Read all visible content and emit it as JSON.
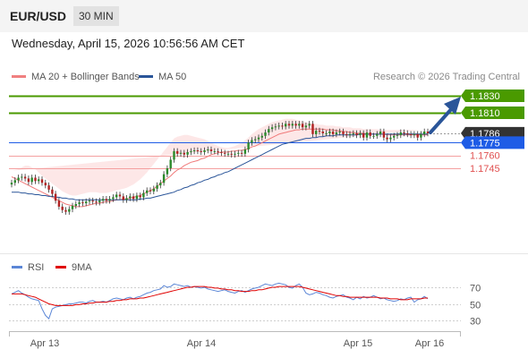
{
  "header": {
    "symbol": "EUR/USD",
    "interval": "30 MIN"
  },
  "datetime": "Wednesday, April 15, 2026 10:56:56 AM CET",
  "legend": {
    "ma20": {
      "label": "MA 20 + Bollinger Bands",
      "color": "#f08080"
    },
    "ma50": {
      "label": "MA 50",
      "color": "#2a5599"
    }
  },
  "credit": "Research © 2026 Trading Central",
  "rsi_legend": {
    "rsi": {
      "label": "RSI",
      "color": "#5b86d6"
    },
    "ma9": {
      "label": "9MA",
      "color": "#e00000"
    }
  },
  "chart_data": [
    {
      "type": "candlestick",
      "ylim": [
        1.7265,
        1.184
      ],
      "x_labels": [
        "Apr 13",
        "Apr 14",
        "Apr 15",
        "Apr 16"
      ],
      "price_levels": [
        {
          "value": 1.183,
          "label": "1.1830",
          "kind": "resistance",
          "color": "#4a9a00"
        },
        {
          "value": 1.181,
          "label": "1.1810",
          "kind": "resistance",
          "color": "#4a9a00"
        },
        {
          "value": 1.1786,
          "label": "1.1786",
          "kind": "last",
          "color": "#333333"
        },
        {
          "value": 1.1775,
          "label": "1.1775",
          "kind": "pivot",
          "color": "#1e5ce6"
        },
        {
          "value": 1.176,
          "label": "1.1760",
          "kind": "support",
          "color": "#e05050"
        },
        {
          "value": 1.1745,
          "label": "1.1745",
          "kind": "support",
          "color": "#e05050"
        }
      ],
      "close": [
        1.1728,
        1.1731,
        1.1734,
        1.1735,
        1.1733,
        1.1729,
        1.1734,
        1.173,
        1.1732,
        1.1728,
        1.1725,
        1.172,
        1.1715,
        1.1707,
        1.17,
        1.1696,
        1.1694,
        1.1697,
        1.1701,
        1.1703,
        1.1705,
        1.1704,
        1.1706,
        1.1707,
        1.1706,
        1.1705,
        1.1707,
        1.1709,
        1.1707,
        1.1709,
        1.1711,
        1.1714,
        1.1712,
        1.1708,
        1.171,
        1.1712,
        1.1709,
        1.1713,
        1.1711,
        1.1716,
        1.1719,
        1.1718,
        1.1721,
        1.1725,
        1.1728,
        1.1738,
        1.1745,
        1.1755,
        1.1765,
        1.1762,
        1.1763,
        1.1761,
        1.1764,
        1.1765,
        1.1766,
        1.1765,
        1.1764,
        1.1766,
        1.1767,
        1.1765,
        1.1765,
        1.1764,
        1.1763,
        1.1762,
        1.1762,
        1.1761,
        1.1762,
        1.1763,
        1.1762,
        1.1767,
        1.1775,
        1.1778,
        1.1779,
        1.1781,
        1.1783,
        1.1787,
        1.1791,
        1.1793,
        1.1794,
        1.1795,
        1.1794,
        1.1797,
        1.1795,
        1.1797,
        1.1795,
        1.1797,
        1.1793,
        1.1795,
        1.1797,
        1.1785,
        1.1789,
        1.1788,
        1.1786,
        1.1786,
        1.1788,
        1.1785,
        1.1787,
        1.1788,
        1.1785,
        1.1784,
        1.1785,
        1.1786,
        1.1784,
        1.1786,
        1.1781,
        1.1787,
        1.1783,
        1.1783,
        1.1785,
        1.1788,
        1.1781,
        1.1779,
        1.1781,
        1.1783,
        1.1784,
        1.1787,
        1.1786,
        1.1785,
        1.1784,
        1.1785,
        1.1781,
        1.1785,
        1.1788,
        1.1786
      ],
      "ma20": [
        1.1735,
        1.1733,
        1.1731,
        1.1729,
        1.1727,
        1.1725,
        1.1723,
        1.1721,
        1.1719,
        1.1717,
        1.1715,
        1.1713,
        1.1711,
        1.1709,
        1.1707,
        1.1705,
        1.1703,
        1.1702,
        1.1701,
        1.17,
        1.17,
        1.17,
        1.1701,
        1.1702,
        1.1703,
        1.1704,
        1.1704,
        1.1705,
        1.1706,
        1.1706,
        1.1707,
        1.1708,
        1.1708,
        1.1709,
        1.1709,
        1.171,
        1.1711,
        1.1712,
        1.1713,
        1.1715,
        1.1717,
        1.1719,
        1.1721,
        1.1724,
        1.1727,
        1.173,
        1.1733,
        1.1736,
        1.174,
        1.1743,
        1.1745,
        1.1748,
        1.175,
        1.1752,
        1.1753,
        1.1754,
        1.1756,
        1.1757,
        1.1759,
        1.1761,
        1.1762,
        1.1763,
        1.1764,
        1.1764,
        1.1764,
        1.1765,
        1.1765,
        1.1766,
        1.1766,
        1.1767,
        1.1768,
        1.177,
        1.1771,
        1.1773,
        1.1775,
        1.1777,
        1.1779,
        1.1781,
        1.1783,
        1.1785,
        1.1786,
        1.1787,
        1.1788,
        1.1789,
        1.179,
        1.179,
        1.1791,
        1.1791,
        1.1791,
        1.1791,
        1.1791,
        1.1791,
        1.1791,
        1.179,
        1.179,
        1.179,
        1.1789,
        1.1789,
        1.1788,
        1.1788,
        1.1787,
        1.1787,
        1.1786,
        1.1786,
        1.1786,
        1.1785,
        1.1785,
        1.1785,
        1.1785,
        1.1785,
        1.1785,
        1.1784,
        1.1784,
        1.1784,
        1.1784,
        1.1784,
        1.1784,
        1.1784,
        1.1784,
        1.1784,
        1.1784,
        1.1784,
        1.1784,
        1.1784
      ],
      "bb_upper": [
        1.1742,
        1.1743,
        1.1744,
        1.1746,
        1.1748,
        1.1748,
        1.1746,
        1.1744,
        1.174,
        1.1736,
        1.1733,
        1.173,
        1.1727,
        1.1724,
        1.1721,
        1.1718,
        1.1716,
        1.1714,
        1.1713,
        1.1713,
        1.1714,
        1.1715,
        1.1716,
        1.1717,
        1.1717,
        1.1717,
        1.1716,
        1.1716,
        1.1716,
        1.1717,
        1.1718,
        1.1719,
        1.172,
        1.1721,
        1.1722,
        1.1724,
        1.1726,
        1.1729,
        1.1732,
        1.1736,
        1.174,
        1.1745,
        1.175,
        1.1755,
        1.176,
        1.1765,
        1.177,
        1.1775,
        1.178,
        1.1782,
        1.1783,
        1.1784,
        1.1784,
        1.1783,
        1.1782,
        1.1781,
        1.178,
        1.1779,
        1.1777,
        1.1775,
        1.1773,
        1.1771,
        1.177,
        1.1769,
        1.1769,
        1.177,
        1.1771,
        1.1773,
        1.1775,
        1.1778,
        1.1781,
        1.1785,
        1.1788,
        1.1791,
        1.1793,
        1.1795,
        1.1797,
        1.1799,
        1.18,
        1.1801,
        1.1802,
        1.1803,
        1.1803,
        1.1803,
        1.1802,
        1.1801,
        1.18,
        1.1799,
        1.1798,
        1.1797,
        1.1797,
        1.1796,
        1.1796,
        1.1795,
        1.1795,
        1.1795,
        1.1794,
        1.1794,
        1.1793,
        1.1793,
        1.1793,
        1.1792,
        1.1792,
        1.1792,
        1.1791,
        1.1791,
        1.1791,
        1.1791,
        1.1791,
        1.179,
        1.179,
        1.179,
        1.179,
        1.179,
        1.179,
        1.179,
        1.179,
        1.179,
        1.179,
        1.179,
        1.179,
        1.179
      ],
      "bb_lower": [
        1.1726,
        1.1723,
        1.1718,
        1.1712,
        1.1706,
        1.17,
        1.1696,
        1.1692,
        1.1689,
        1.1687,
        1.1686,
        1.1686,
        1.1686,
        1.1687,
        1.1688,
        1.1689,
        1.169,
        1.169,
        1.169,
        1.169,
        1.169,
        1.169,
        1.169,
        1.1691,
        1.1693,
        1.1695,
        1.1697,
        1.1698,
        1.1699,
        1.17,
        1.17,
        1.17,
        1.17,
        1.17,
        1.17,
        1.1699,
        1.1698,
        1.1697,
        1.1696,
        1.1695,
        1.1694,
        1.1693,
        1.1692,
        1.1692,
        1.1693,
        1.1695,
        1.1698,
        1.1702,
        1.1706,
        1.1711,
        1.1716,
        1.1721,
        1.1726,
        1.1731,
        1.1735,
        1.1739,
        1.1743,
        1.1747,
        1.1751,
        1.1754,
        1.1757,
        1.1759,
        1.176,
        1.176,
        1.1759,
        1.1758,
        1.1758,
        1.1759,
        1.1761,
        1.1763,
        1.1765,
        1.1767,
        1.177,
        1.1773,
        1.1775,
        1.1777,
        1.1779,
        1.1781,
        1.1782,
        1.1783,
        1.1783,
        1.1783,
        1.1783,
        1.1782,
        1.1782,
        1.1781,
        1.1781,
        1.178,
        1.178,
        1.178,
        1.178,
        1.178,
        1.178,
        1.178,
        1.178,
        1.178,
        1.1779,
        1.1779,
        1.1779,
        1.1779,
        1.1779,
        1.1779,
        1.1779,
        1.1779,
        1.1779,
        1.1779,
        1.1779,
        1.1779,
        1.1779,
        1.1779,
        1.1779,
        1.1779,
        1.1779,
        1.1779,
        1.1779,
        1.1779,
        1.1779,
        1.1779,
        1.1779,
        1.1779,
        1.1779,
        1.1779,
        1.1779,
        1.1779
      ],
      "ma50": [
        1.1717,
        1.1717,
        1.1717,
        1.1716,
        1.1716,
        1.1715,
        1.1715,
        1.1714,
        1.1714,
        1.1713,
        1.1713,
        1.1712,
        1.1712,
        1.1711,
        1.1711,
        1.171,
        1.171,
        1.1709,
        1.1709,
        1.1708,
        1.1708,
        1.1708,
        1.1708,
        1.1708,
        1.1708,
        1.1708,
        1.1708,
        1.1708,
        1.1708,
        1.1708,
        1.1708,
        1.1708,
        1.1708,
        1.1708,
        1.1708,
        1.1708,
        1.1708,
        1.1708,
        1.1709,
        1.1709,
        1.171,
        1.171,
        1.1711,
        1.1712,
        1.1713,
        1.1714,
        1.1715,
        1.1716,
        1.1717,
        1.1719,
        1.172,
        1.1722,
        1.1723,
        1.1725,
        1.1726,
        1.1728,
        1.1729,
        1.1731,
        1.1732,
        1.1734,
        1.1735,
        1.1737,
        1.1738,
        1.174,
        1.1741,
        1.1743,
        1.1745,
        1.1747,
        1.1749,
        1.1751,
        1.1753,
        1.1755,
        1.1757,
        1.1759,
        1.1761,
        1.1763,
        1.1765,
        1.1767,
        1.1769,
        1.1771,
        1.1773,
        1.1774,
        1.1775,
        1.1776,
        1.1777,
        1.1778,
        1.1779,
        1.178,
        1.178,
        1.1781,
        1.1781,
        1.1782,
        1.1782,
        1.1783,
        1.1783,
        1.1783,
        1.1784,
        1.1784,
        1.1784,
        1.1784,
        1.1784,
        1.1784,
        1.1784,
        1.1785,
        1.1785,
        1.1785,
        1.1785,
        1.1785,
        1.1785,
        1.1785,
        1.1785,
        1.1785,
        1.1785,
        1.1785,
        1.1785,
        1.1785,
        1.1785,
        1.1785,
        1.1785,
        1.1785,
        1.1785,
        1.1785,
        1.1785,
        1.1785
      ]
    },
    {
      "type": "line",
      "name": "RSI",
      "ylim": [
        20,
        80
      ],
      "y_ticks": [
        70,
        50,
        30
      ],
      "series": [
        {
          "name": "RSI",
          "color": "#5b86d6",
          "values": [
            62,
            64,
            66,
            63,
            61,
            58,
            56,
            55,
            54,
            44,
            36,
            32,
            44,
            46,
            47,
            48,
            49,
            50,
            50,
            51,
            52,
            52,
            51,
            53,
            54,
            52,
            52,
            53,
            52,
            54,
            56,
            57,
            56,
            55,
            57,
            58,
            56,
            58,
            59,
            61,
            63,
            64,
            66,
            67,
            68,
            72,
            70,
            71,
            74,
            73,
            72,
            71,
            72,
            70,
            71,
            70,
            69,
            70,
            68,
            67,
            66,
            65,
            66,
            67,
            65,
            64,
            63,
            65,
            66,
            64,
            66,
            68,
            69,
            70,
            72,
            74,
            73,
            72,
            74,
            75,
            74,
            73,
            70,
            69,
            72,
            74,
            70,
            63,
            61,
            62,
            64,
            63,
            61,
            60,
            58,
            57,
            59,
            60,
            61,
            58,
            57,
            55,
            58,
            56,
            59,
            57,
            58,
            60,
            58,
            56,
            57,
            55,
            54,
            53,
            54,
            56,
            55,
            57,
            58,
            52,
            55,
            56,
            59,
            56
          ]
        },
        {
          "name": "9MA",
          "color": "#e00000",
          "values": [
            62,
            62,
            62,
            62,
            61,
            60,
            59,
            58,
            56,
            54,
            52,
            50,
            49,
            48,
            48,
            48,
            48,
            48,
            48,
            49,
            49,
            50,
            50,
            51,
            51,
            52,
            52,
            52,
            52,
            53,
            53,
            54,
            54,
            55,
            55,
            56,
            56,
            56,
            57,
            57,
            58,
            59,
            60,
            61,
            62,
            63,
            64,
            65,
            66,
            67,
            68,
            69,
            70,
            70,
            71,
            71,
            71,
            71,
            70,
            70,
            69,
            69,
            68,
            68,
            67,
            67,
            66,
            66,
            65,
            65,
            65,
            66,
            66,
            67,
            67,
            68,
            69,
            70,
            70,
            71,
            71,
            71,
            71,
            71,
            71,
            71,
            70,
            69,
            68,
            67,
            66,
            65,
            64,
            63,
            62,
            61,
            60,
            60,
            59,
            59,
            58,
            58,
            58,
            58,
            58,
            58,
            58,
            58,
            58,
            57,
            57,
            57,
            56,
            56,
            56,
            55,
            55,
            55,
            56,
            56,
            56,
            56,
            57,
            57
          ]
        }
      ]
    }
  ]
}
